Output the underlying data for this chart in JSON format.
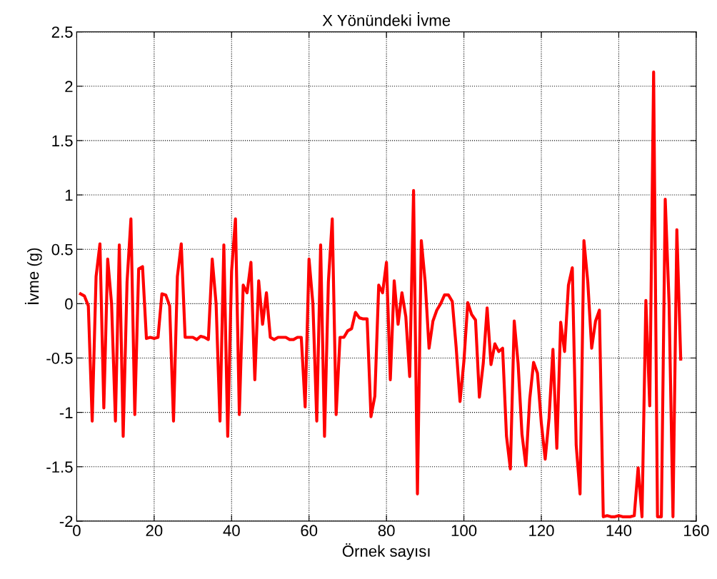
{
  "chart_data": {
    "type": "line",
    "title": "X Yönündeki İvme",
    "xlabel": "Örnek sayısı",
    "ylabel": "İvme (g)",
    "x": [
      1,
      2,
      3,
      4,
      5,
      6,
      7,
      8,
      9,
      10,
      11,
      12,
      13,
      14,
      15,
      16,
      17,
      18,
      19,
      20,
      21,
      22,
      23,
      24,
      25,
      26,
      27,
      28,
      29,
      30,
      31,
      32,
      33,
      34,
      35,
      36,
      37,
      38,
      39,
      40,
      41,
      42,
      43,
      44,
      45,
      46,
      47,
      48,
      49,
      50,
      51,
      52,
      53,
      54,
      55,
      56,
      57,
      58,
      59,
      60,
      61,
      62,
      63,
      64,
      65,
      66,
      67,
      68,
      69,
      70,
      71,
      72,
      73,
      74,
      75,
      76,
      77,
      78,
      79,
      80,
      81,
      82,
      83,
      84,
      85,
      86,
      87,
      88,
      89,
      90,
      91,
      92,
      93,
      94,
      95,
      96,
      97,
      98,
      99,
      100,
      101,
      102,
      103,
      104,
      105,
      106,
      107,
      108,
      109,
      110,
      111,
      112,
      113,
      114,
      115,
      116,
      117,
      118,
      119,
      120,
      121,
      122,
      123,
      124,
      125,
      126,
      127,
      128,
      129,
      130,
      131,
      132,
      133,
      134,
      135,
      136,
      137,
      138,
      139,
      140,
      141,
      142,
      143,
      144,
      145,
      146,
      147,
      148,
      149,
      150,
      151,
      152,
      153,
      154,
      155,
      156
    ],
    "series": [
      {
        "color": "#ff0000",
        "values": [
          0.09,
          0.07,
          -0.02,
          -1.08,
          0.25,
          0.55,
          -0.96,
          0.41,
          0.0,
          -1.08,
          0.54,
          -1.22,
          0.2,
          0.78,
          -1.02,
          0.32,
          0.34,
          -0.32,
          -0.31,
          -0.32,
          -0.31,
          0.09,
          0.08,
          -0.02,
          -1.08,
          0.25,
          0.55,
          -0.31,
          -0.31,
          -0.31,
          -0.33,
          -0.3,
          -0.31,
          -0.33,
          0.41,
          0.0,
          -1.08,
          0.54,
          -1.22,
          0.3,
          0.78,
          -1.02,
          0.17,
          0.1,
          0.38,
          -0.7,
          0.21,
          -0.19,
          0.1,
          -0.31,
          -0.33,
          -0.31,
          -0.31,
          -0.31,
          -0.33,
          -0.33,
          -0.31,
          -0.31,
          -0.95,
          0.41,
          0.0,
          -1.08,
          0.54,
          -1.22,
          0.2,
          0.78,
          -1.02,
          -0.31,
          -0.31,
          -0.25,
          -0.23,
          -0.08,
          -0.13,
          -0.14,
          -0.14,
          -1.04,
          -0.85,
          0.17,
          0.1,
          0.38,
          -0.7,
          0.21,
          -0.19,
          0.1,
          -0.12,
          -0.67,
          1.04,
          -1.75,
          0.58,
          0.2,
          -0.41,
          -0.16,
          -0.06,
          0.0,
          0.08,
          0.08,
          0.02,
          -0.4,
          -0.9,
          -0.53,
          0.01,
          -0.1,
          -0.15,
          -0.86,
          -0.55,
          -0.04,
          -0.56,
          -0.37,
          -0.44,
          -0.41,
          -1.22,
          -1.52,
          -0.16,
          -0.55,
          -1.2,
          -1.49,
          -0.88,
          -0.54,
          -0.64,
          -1.1,
          -1.43,
          -1.05,
          -0.42,
          -1.33,
          -0.17,
          -0.44,
          0.17,
          0.33,
          -1.3,
          -1.75,
          0.58,
          0.2,
          -0.41,
          -0.16,
          -0.06,
          -1.96,
          -1.95,
          -1.96,
          -1.96,
          -1.95,
          -1.96,
          -1.96,
          -1.96,
          -1.95,
          -1.51,
          -1.96,
          0.03,
          -0.94,
          2.13,
          -1.96,
          -1.96,
          0.96,
          0.0,
          -1.96,
          0.68,
          -0.51
        ]
      }
    ],
    "xlim": [
      0,
      160
    ],
    "xticks": [
      0,
      20,
      40,
      60,
      80,
      100,
      120,
      140,
      160
    ],
    "ylim": [
      -2,
      2.5
    ],
    "yticks": [
      -2,
      -1.5,
      -1,
      -0.5,
      0,
      0.5,
      1,
      1.5,
      2,
      2.5
    ],
    "grid": true,
    "marker": "none",
    "line_style": "solid",
    "legend": false
  }
}
